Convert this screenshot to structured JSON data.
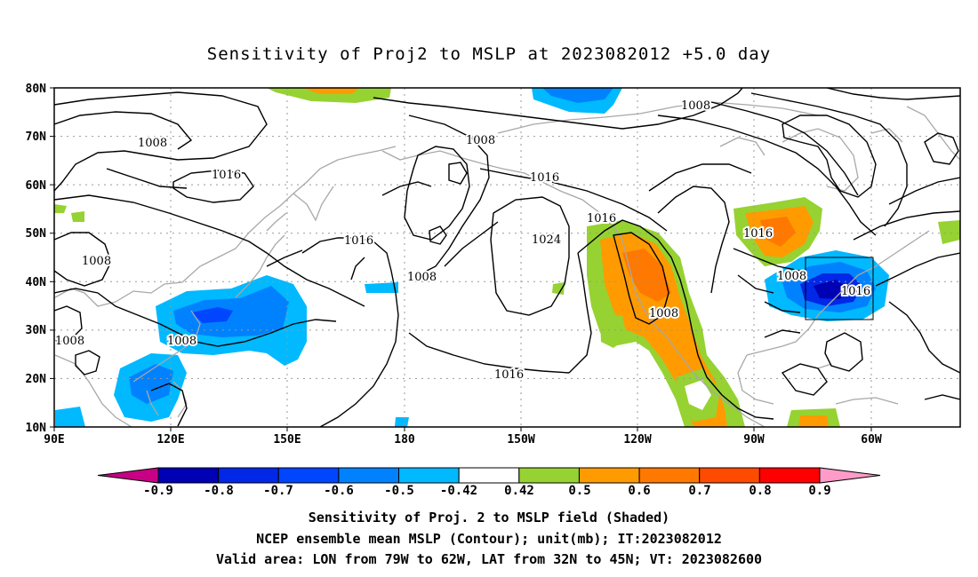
{
  "title": "Sensitivity of Proj2 to MSLP at 2023082012 +5.0 day",
  "lat_labels": [
    "80N",
    "70N",
    "60N",
    "50N",
    "40N",
    "30N",
    "20N",
    "10N"
  ],
  "lon_labels": [
    "90E",
    "120E",
    "150E",
    "180",
    "150W",
    "120W",
    "90W",
    "60W"
  ],
  "contour_labels": [
    "1008",
    "1008",
    "1008",
    "1008",
    "1008",
    "1008",
    "1008",
    "1008",
    "1008",
    "1016",
    "1016",
    "1016",
    "1016",
    "1016",
    "1016",
    "1016",
    "1024"
  ],
  "colorbar": {
    "labels": [
      "-0.9",
      "-0.8",
      "-0.7",
      "-0.6",
      "-0.5",
      "-0.42",
      "0.42",
      "0.5",
      "0.6",
      "0.7",
      "0.8",
      "0.9"
    ],
    "colors": [
      "#c80084",
      "#0000b4",
      "#0028e6",
      "#0046ff",
      "#0082ff",
      "#00b9ff",
      "#ffffff",
      "#96d232",
      "#ff9b00",
      "#ff7800",
      "#ff4b00",
      "#ff0000",
      "#ff9bc8"
    ]
  },
  "captions": {
    "line1": "Sensitivity of Proj. 2 to MSLP field (Shaded)",
    "line2": "NCEP ensemble mean MSLP (Contour); unit(mb); IT:2023082012",
    "line3": "Valid area: LON from 79W to 62W, LAT from 32N to 45N; VT: 2023082600"
  },
  "valid_area": {
    "lon_west": -79,
    "lon_east": -62,
    "lat_south": 32,
    "lat_north": 45
  }
}
